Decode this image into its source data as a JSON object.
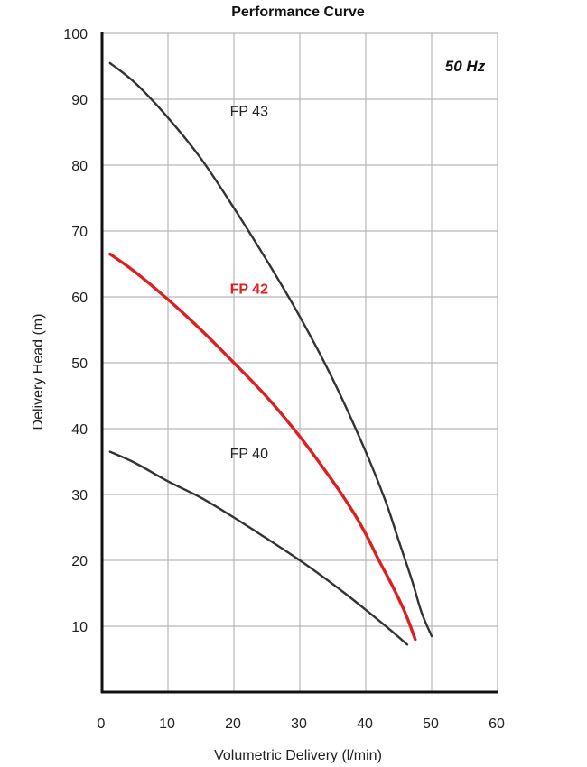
{
  "chart_data": {
    "type": "line",
    "title": "Performance Curve",
    "annotation": "50 Hz",
    "xlabel": "Volumetric Delivery (l/min)",
    "ylabel": "Delivery Head (m)",
    "xlim": [
      0,
      60
    ],
    "ylim": [
      0,
      100
    ],
    "x_ticks": [
      "0",
      "10",
      "20",
      "30",
      "40",
      "50",
      "60"
    ],
    "y_ticks": [
      "10",
      "20",
      "30",
      "40",
      "50",
      "60",
      "70",
      "80",
      "90",
      "100"
    ],
    "grid": true,
    "colors": {
      "grid": "#b8b8b8",
      "axis": "#111111",
      "dark_series": "#333333",
      "highlight_series": "#dd1f1f"
    },
    "series": [
      {
        "name": "FP 43",
        "color": "#333333",
        "label_at": [
          22.3,
          87.5
        ],
        "points": [
          [
            1.2,
            95.5
          ],
          [
            5,
            92.5
          ],
          [
            10,
            87.2
          ],
          [
            15,
            81
          ],
          [
            20,
            73.5
          ],
          [
            25,
            65.5
          ],
          [
            30,
            57
          ],
          [
            35,
            47.5
          ],
          [
            40,
            36.5
          ],
          [
            43,
            29
          ],
          [
            45,
            23
          ],
          [
            47,
            17
          ],
          [
            48.5,
            12
          ],
          [
            50,
            8.5
          ]
        ]
      },
      {
        "name": "FP 42",
        "color": "#dd1f1f",
        "highlight": true,
        "label_at": [
          22.3,
          60.5
        ],
        "points": [
          [
            1.2,
            66.5
          ],
          [
            5,
            63.8
          ],
          [
            10,
            59.6
          ],
          [
            15,
            55
          ],
          [
            20,
            50
          ],
          [
            25,
            44.8
          ],
          [
            30,
            38.8
          ],
          [
            35,
            32
          ],
          [
            38,
            27.5
          ],
          [
            40,
            24
          ],
          [
            42,
            20
          ],
          [
            44,
            16.2
          ],
          [
            46,
            12
          ],
          [
            47.5,
            8
          ]
        ]
      },
      {
        "name": "FP 40",
        "color": "#333333",
        "label_at": [
          22.3,
          35.5
        ],
        "points": [
          [
            1.2,
            36.5
          ],
          [
            5,
            34.8
          ],
          [
            10,
            32
          ],
          [
            15,
            29.5
          ],
          [
            20,
            26.5
          ],
          [
            25,
            23.3
          ],
          [
            30,
            20
          ],
          [
            35,
            16.4
          ],
          [
            40,
            12.5
          ],
          [
            44,
            9.2
          ],
          [
            46.3,
            7.2
          ]
        ]
      }
    ]
  }
}
